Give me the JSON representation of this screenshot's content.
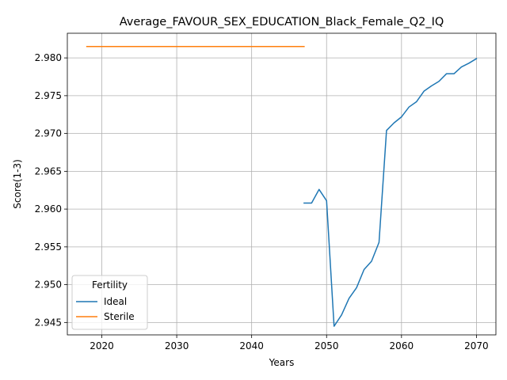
{
  "chart_data": {
    "type": "line",
    "title": "Average_FAVOUR_SEX_EDUCATION_Black_Female_Q2_IQ",
    "xlabel": "Years",
    "ylabel": "Score(1-3)",
    "xlim": [
      2015.4,
      2072.6
    ],
    "ylim": [
      2.94336,
      2.98326
    ],
    "xticks": [
      2020,
      2030,
      2040,
      2050,
      2060,
      2070
    ],
    "yticks": [
      2.945,
      2.95,
      2.955,
      2.96,
      2.965,
      2.97,
      2.975,
      2.98
    ],
    "ytick_labels": [
      "2.945",
      "2.950",
      "2.955",
      "2.960",
      "2.965",
      "2.970",
      "2.975",
      "2.980"
    ],
    "grid": true,
    "legend": {
      "title": "Fertility",
      "placement": "lower-left"
    },
    "series": [
      {
        "name": "Ideal",
        "color": "#1f77b4",
        "x": [
          2047,
          2048,
          2049,
          2050,
          2051,
          2052,
          2053,
          2054,
          2055,
          2056,
          2057,
          2058,
          2059,
          2060,
          2061,
          2062,
          2063,
          2064,
          2065,
          2066,
          2067,
          2068,
          2069,
          2070
        ],
        "y": [
          2.9608,
          2.9608,
          2.9626,
          2.9611,
          2.9445,
          2.946,
          2.9482,
          2.9496,
          2.952,
          2.9531,
          2.9556,
          2.9704,
          2.9714,
          2.9722,
          2.9735,
          2.9742,
          2.9756,
          2.9763,
          2.9769,
          2.9779,
          2.9779,
          2.9788,
          2.9793,
          2.9799
        ]
      },
      {
        "name": "Sterile",
        "color": "#ff7f0e",
        "x": [
          2018,
          2047
        ],
        "y": [
          2.9815,
          2.9815
        ]
      }
    ]
  }
}
